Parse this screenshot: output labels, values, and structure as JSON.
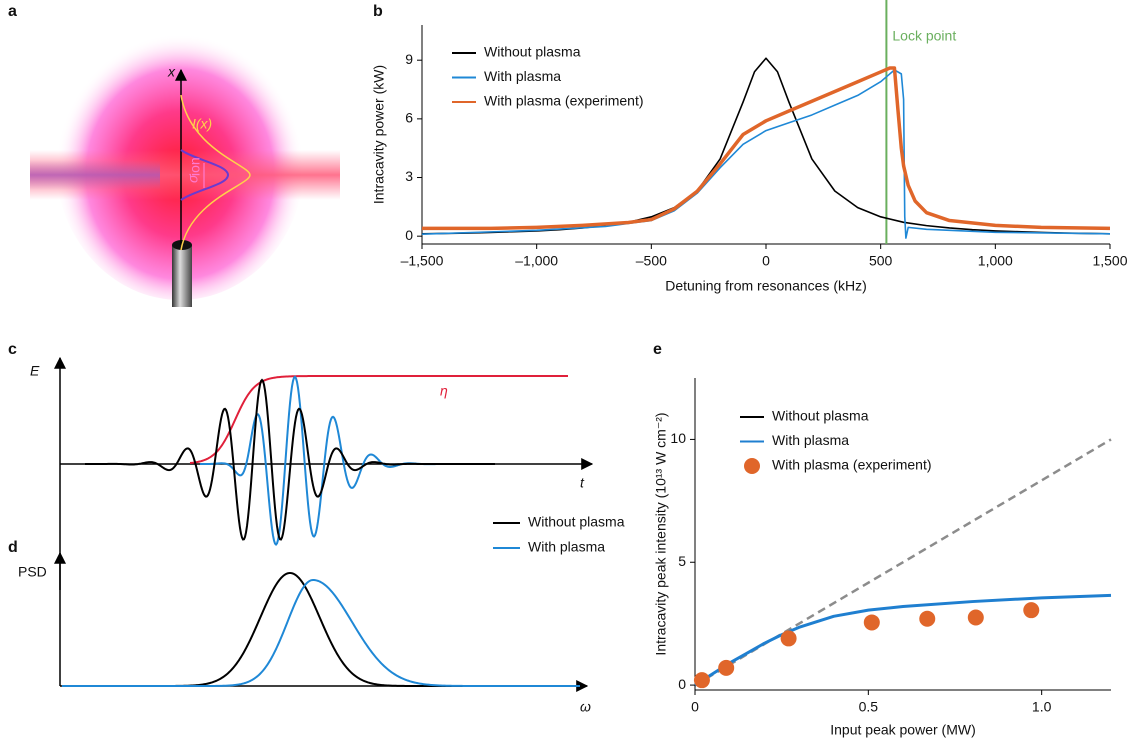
{
  "panel_a": {
    "label": "a",
    "axis_label": "x",
    "intensity_label": "I(x)",
    "sigma_label": "σ",
    "sigma_sub": "ion"
  },
  "chart_data": [
    {
      "type": "line",
      "panel": "b",
      "x_label": "Detuning from resonances (kHz)",
      "y_label": "Intracavity power (kW)",
      "xlim": [
        -1500,
        1500
      ],
      "ylim": [
        -0.4,
        10.8
      ],
      "xticks": [
        {
          "value": -1500,
          "label": "–1,500"
        },
        {
          "value": -1000,
          "label": "–1,000"
        },
        {
          "value": -500,
          "label": "–500"
        },
        0,
        500,
        {
          "value": 1000,
          "label": "1,000"
        },
        {
          "value": 1500,
          "label": "1,500"
        }
      ],
      "yticks": [
        0,
        3,
        6,
        9
      ],
      "lock_point": {
        "label": "Lock point",
        "x": 525,
        "color": "#6aaf5e"
      },
      "series": [
        {
          "name": "Without plasma",
          "color": "#000000",
          "line_width": 1.6,
          "x": [
            -1500,
            -1400,
            -1300,
            -1200,
            -1100,
            -1000,
            -900,
            -800,
            -700,
            -600,
            -500,
            -400,
            -300,
            -200,
            -100,
            -50,
            0,
            50,
            100,
            200,
            300,
            400,
            500,
            600,
            700,
            800,
            900,
            1000,
            1100,
            1200,
            1300,
            1400,
            1500
          ],
          "values": [
            0.12,
            0.14,
            0.16,
            0.19,
            0.23,
            0.27,
            0.33,
            0.42,
            0.54,
            0.71,
            0.99,
            1.46,
            2.31,
            3.95,
            6.86,
            8.41,
            9.1,
            8.41,
            6.86,
            3.95,
            2.31,
            1.46,
            0.99,
            0.71,
            0.54,
            0.42,
            0.33,
            0.27,
            0.23,
            0.19,
            0.16,
            0.14,
            0.12
          ]
        },
        {
          "name": "With plasma",
          "color": "#1f88d6",
          "line_width": 1.6,
          "x": [
            -1500,
            -1000,
            -700,
            -500,
            -400,
            -300,
            -200,
            -100,
            0,
            100,
            200,
            300,
            400,
            500,
            560,
            590,
            600,
            605,
            610,
            620,
            700,
            1000,
            1500
          ],
          "values": [
            0.1,
            0.3,
            0.5,
            0.8,
            1.3,
            2.2,
            3.5,
            4.7,
            5.4,
            5.8,
            6.2,
            6.7,
            7.2,
            7.9,
            8.5,
            8.3,
            7.0,
            1.0,
            -0.1,
            0.45,
            0.35,
            0.2,
            0.12
          ]
        },
        {
          "name": "With plasma (experiment)",
          "color": "#e0662a",
          "line_width": 3.5,
          "x": [
            -1500,
            -1200,
            -1000,
            -800,
            -600,
            -500,
            -400,
            -300,
            -200,
            -100,
            0,
            100,
            200,
            300,
            400,
            500,
            540,
            560,
            575,
            590,
            600,
            620,
            650,
            700,
            800,
            1000,
            1200,
            1500
          ],
          "values": [
            0.4,
            0.4,
            0.45,
            0.55,
            0.7,
            0.85,
            1.4,
            2.3,
            3.7,
            5.2,
            5.9,
            6.4,
            6.9,
            7.4,
            7.9,
            8.4,
            8.6,
            8.6,
            6.5,
            4.5,
            3.6,
            2.6,
            1.8,
            1.2,
            0.8,
            0.55,
            0.45,
            0.4
          ]
        }
      ]
    },
    {
      "type": "line",
      "panel": "e",
      "x_label": "Input peak power (MW)",
      "y_label": "Intracavity peak intensity (10¹³ W cm⁻²)",
      "xlim": [
        0,
        1.2
      ],
      "ylim": [
        -0.2,
        12.5
      ],
      "xticks": [
        0,
        0.5,
        {
          "value": 1,
          "label": "1.0"
        }
      ],
      "yticks": [
        0,
        5,
        10
      ],
      "series": [
        {
          "name": "Without plasma",
          "color": "#000000",
          "line_color": "#8c8c8c",
          "dash": true,
          "line_width": 2.5,
          "x": [
            0,
            1.2
          ],
          "values": [
            0,
            10
          ]
        },
        {
          "name": "With plasma",
          "color": "#1f7fd0",
          "line_width": 3,
          "x": [
            0,
            0.05,
            0.1,
            0.15,
            0.2,
            0.25,
            0.3,
            0.4,
            0.5,
            0.6,
            0.8,
            1.0,
            1.2
          ],
          "values": [
            0,
            0.45,
            0.9,
            1.3,
            1.7,
            2.05,
            2.35,
            2.8,
            3.05,
            3.2,
            3.4,
            3.55,
            3.65
          ]
        },
        {
          "name": "With plasma (experiment)",
          "color": "#e0662a",
          "mode": "markers",
          "x": [
            0.02,
            0.09,
            0.27,
            0.51,
            0.67,
            0.81,
            0.97
          ],
          "values": [
            0.2,
            0.7,
            1.9,
            2.55,
            2.7,
            2.75,
            3.05
          ]
        }
      ]
    }
  ],
  "panel_cd": {
    "label_c": "c",
    "label_d": "d",
    "e_label": "E",
    "t_label": "t",
    "eta_label": "η",
    "psd_label": "PSD",
    "omega_label": "ω",
    "legend": [
      "Without plasma",
      "With plasma"
    ]
  }
}
